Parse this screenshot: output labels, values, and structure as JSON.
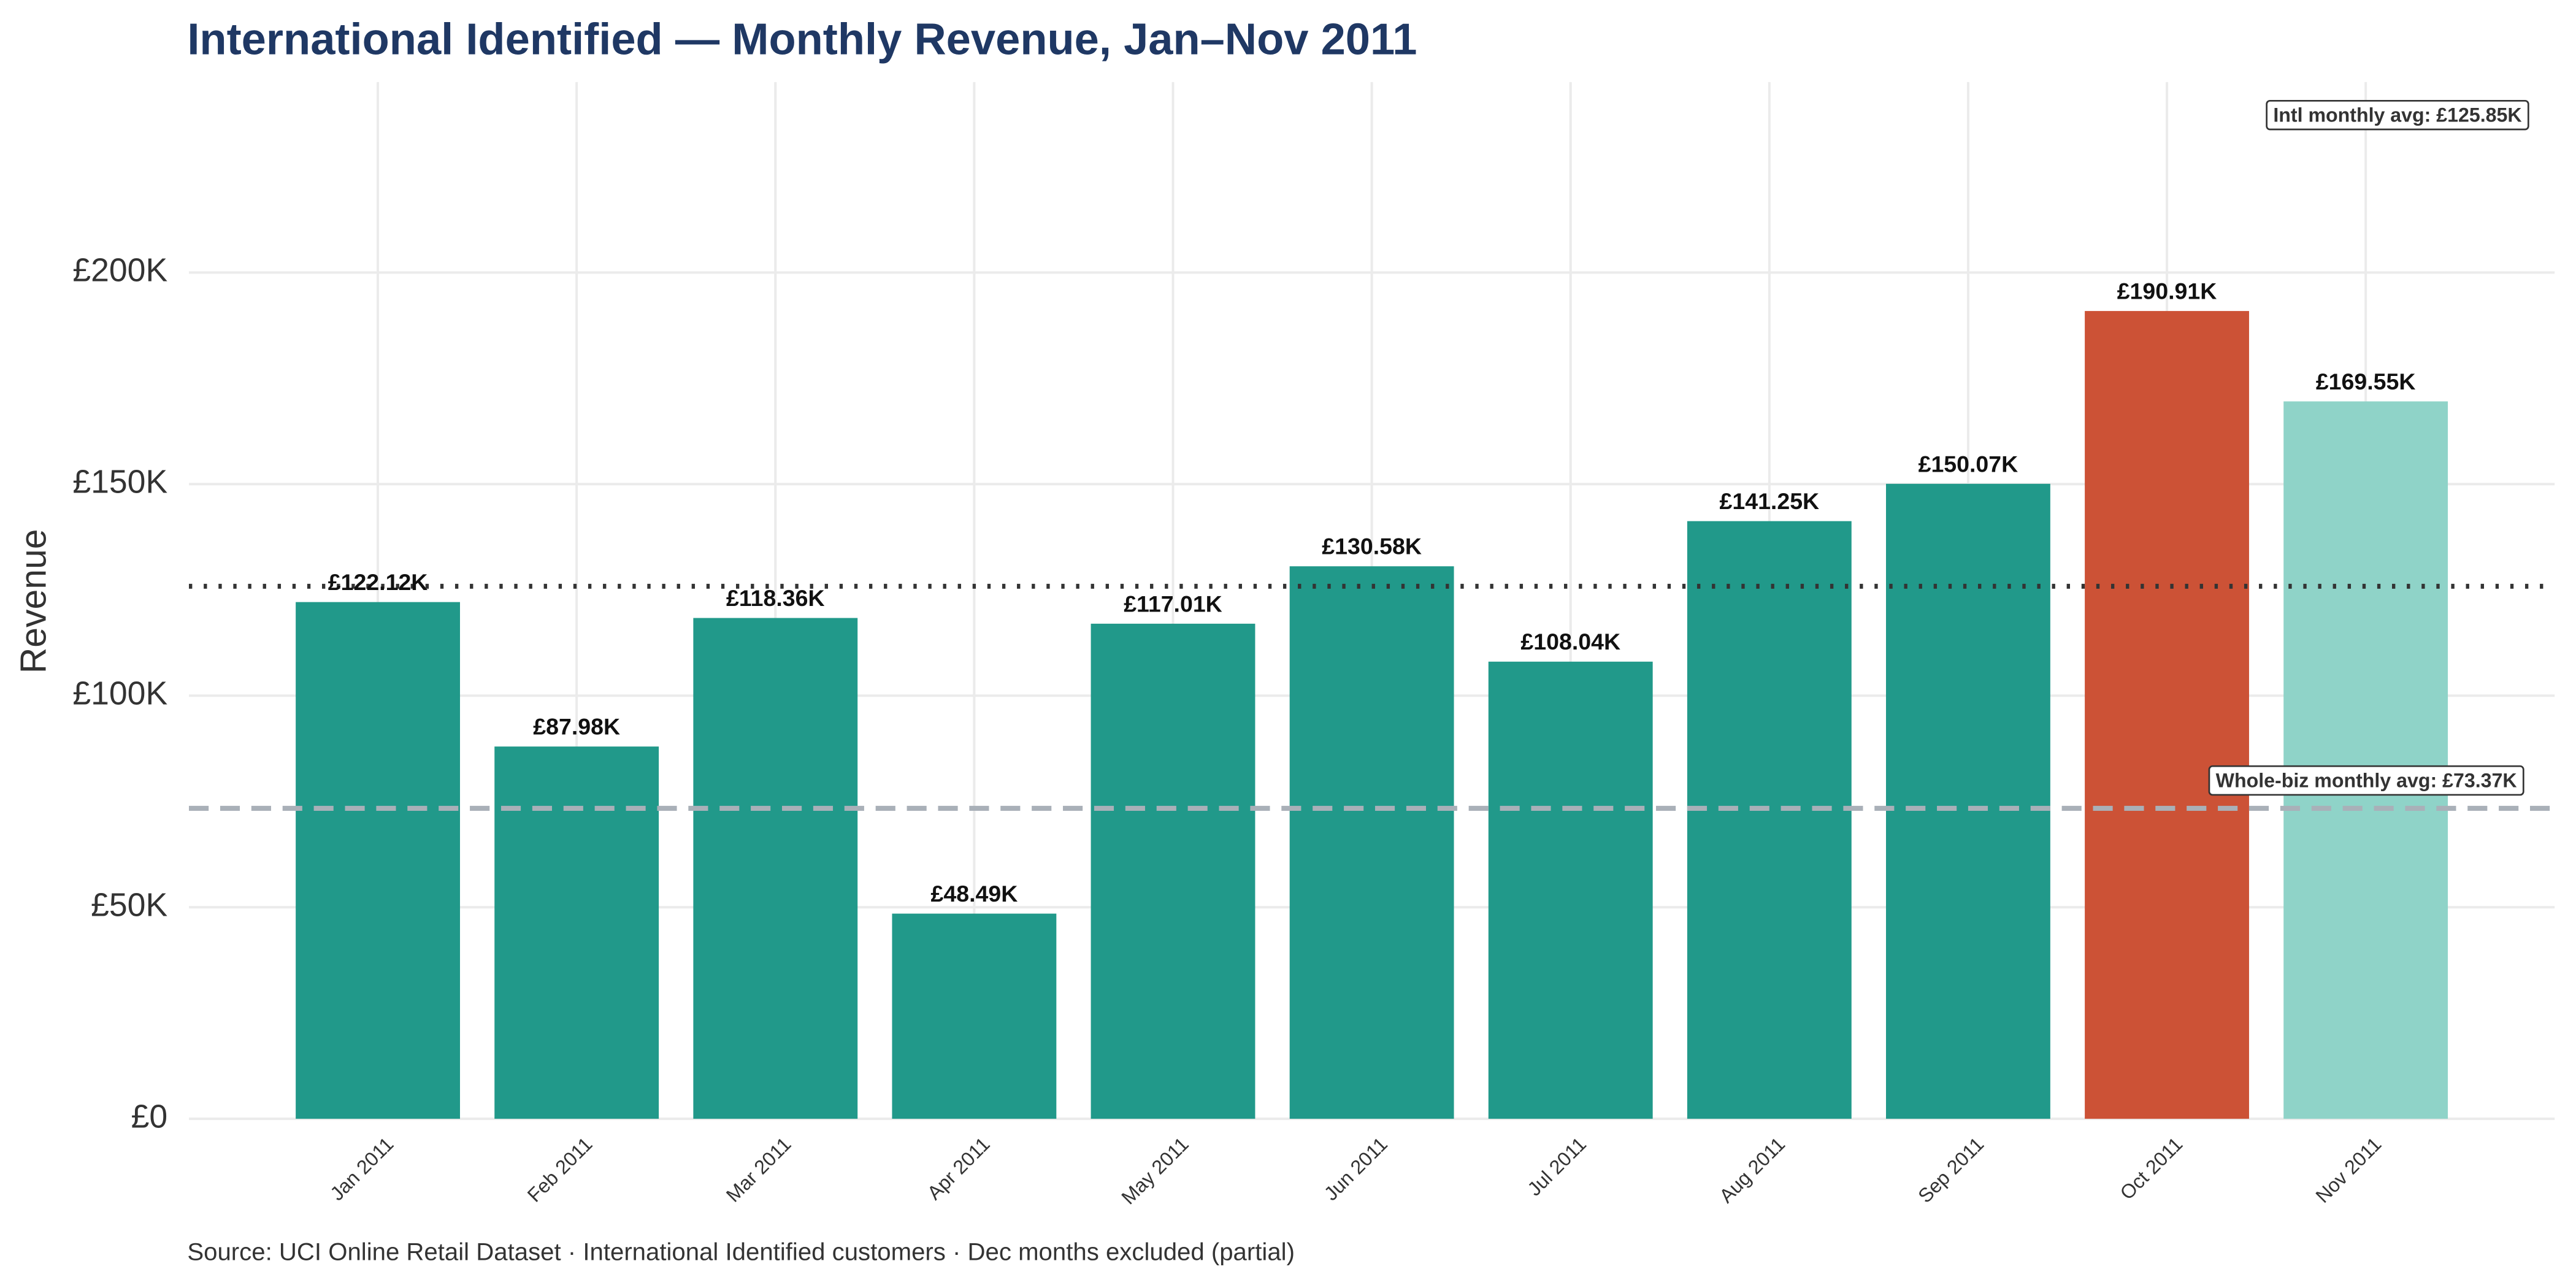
{
  "chart_data": {
    "type": "bar",
    "title": "International Identified — Monthly Revenue, Jan–Nov 2011",
    "y_label": "Revenue",
    "caption": "Source: UCI Online Retail Dataset · International Identified customers · Dec months excluded (partial)",
    "categories": [
      "Jan 2011",
      "Feb 2011",
      "Mar 2011",
      "Apr 2011",
      "May 2011",
      "Jun 2011",
      "Jul 2011",
      "Aug 2011",
      "Sep 2011",
      "Oct 2011",
      "Nov 2011"
    ],
    "values": [
      122120,
      87980,
      118360,
      48490,
      117010,
      130580,
      108040,
      141250,
      150070,
      190910,
      169550
    ],
    "value_labels": [
      "£122.12K",
      "£87.98K",
      "£118.36K",
      "£48.49K",
      "£117.01K",
      "£130.58K",
      "£108.04K",
      "£141.25K",
      "£150.07K",
      "£190.91K",
      "£169.55K"
    ],
    "colors": [
      "#21998a",
      "#21998a",
      "#21998a",
      "#21998a",
      "#21998a",
      "#21998a",
      "#21998a",
      "#21998a",
      "#21998a",
      "#cc5236",
      "#8fd3c8"
    ],
    "ylim": [
      0,
      245000
    ],
    "yticks": [
      {
        "value": 0,
        "label": "£0"
      },
      {
        "value": 50000,
        "label": "£50K"
      },
      {
        "value": 100000,
        "label": "£100K"
      },
      {
        "value": 150000,
        "label": "£150K"
      },
      {
        "value": 200000,
        "label": "£200K"
      }
    ],
    "grid": true,
    "reference_lines": [
      {
        "value": 125850,
        "label": "Intl monthly avg: £125.85K",
        "style": "dotted",
        "color": "#333333"
      },
      {
        "value": 73370,
        "label": "Whole-biz monthly avg: £73.37K",
        "style": "dashed",
        "color": "#a9b0b8"
      }
    ]
  }
}
